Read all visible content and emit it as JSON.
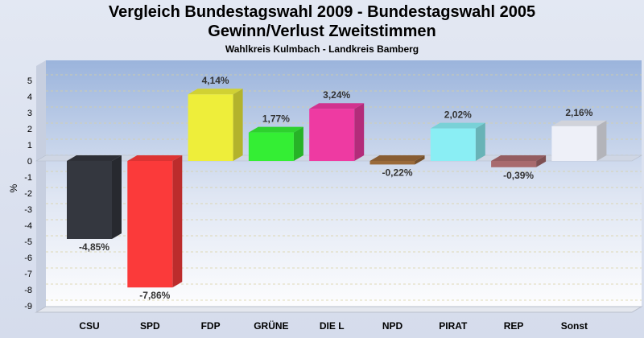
{
  "chart_data": {
    "type": "bar",
    "title": "Vergleich Bundestagswahl 2009 - Bundestagswahl 2005",
    "subtitle": "Gewinn/Verlust Zweitstimmen",
    "caption": "Wahlkreis Kulmbach - Landkreis Bamberg",
    "ylabel": "%",
    "xlabel": "",
    "ylim": [
      -9.5,
      6
    ],
    "yticks": [
      5,
      4,
      3,
      2,
      1,
      0,
      -1,
      -2,
      -3,
      -4,
      -5,
      -6,
      -7,
      -8,
      -9
    ],
    "grid": true,
    "categories": [
      "CSU",
      "SPD",
      "FDP",
      "GRÜNE",
      "DIE L",
      "NPD",
      "PIRAT",
      "REP",
      "Sonst"
    ],
    "values": [
      -4.85,
      -7.86,
      4.14,
      1.77,
      3.24,
      -0.22,
      2.02,
      -0.39,
      2.16
    ],
    "value_labels": [
      "-4,85%",
      "-7,86%",
      "4,14%",
      "1,77%",
      "3,24%",
      "-0,22%",
      "2,02%",
      "-0,39%",
      "2,16%"
    ],
    "colors": [
      "#34373f",
      "#fb3a3a",
      "#eeee3a",
      "#34ee34",
      "#ee3aa2",
      "#9a6a3a",
      "#8aeef4",
      "#a86a6e",
      "#eef0f8"
    ]
  }
}
